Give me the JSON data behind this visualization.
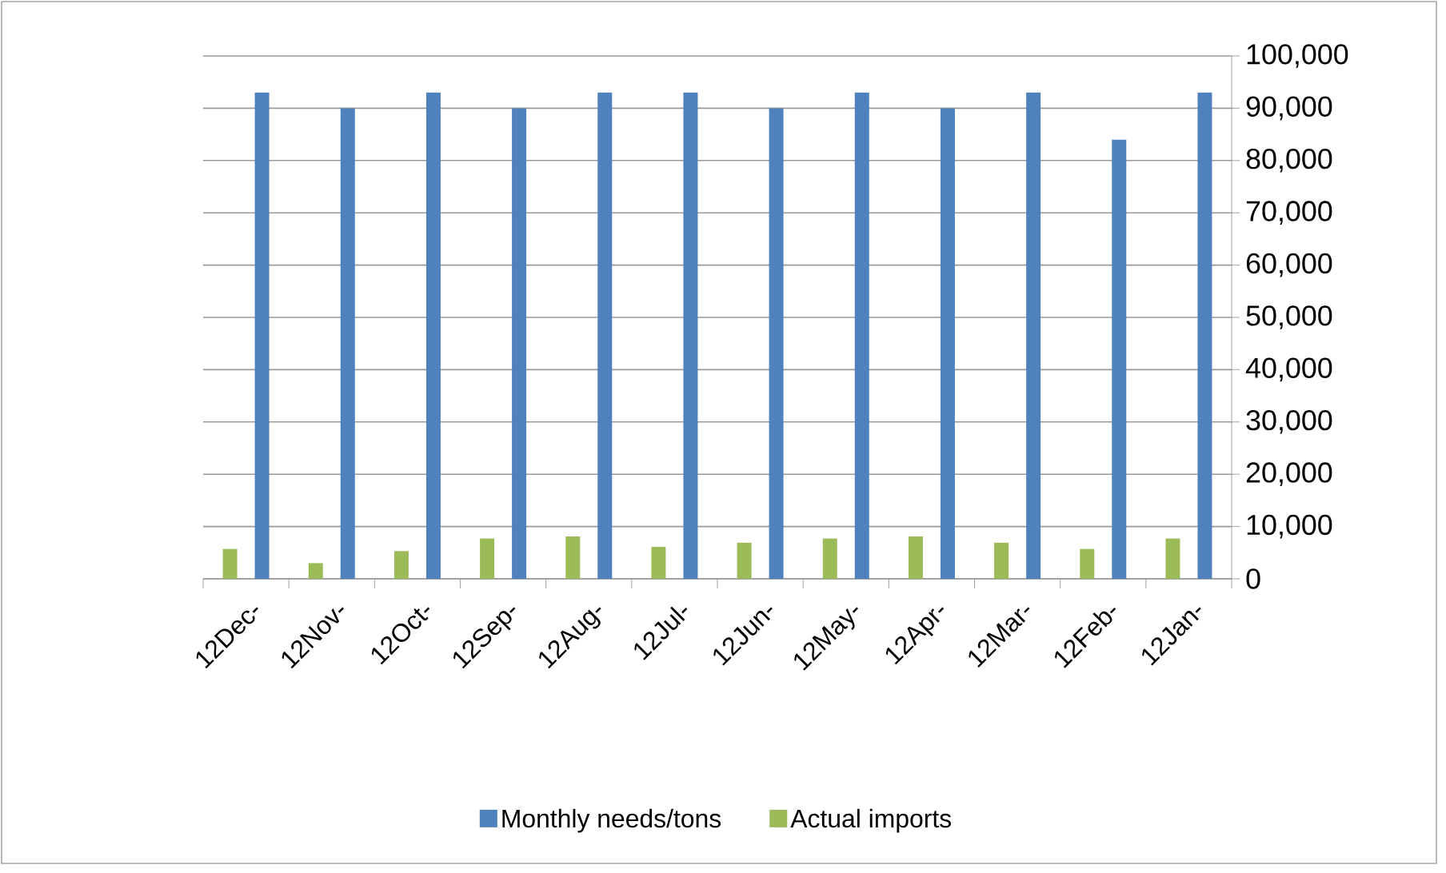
{
  "chart_data": {
    "type": "bar",
    "categories": [
      "12Dec-",
      "12Nov-",
      "12Oct-",
      "12Sep-",
      "12Aug-",
      "12Jul-",
      "12Jun-",
      "12May-",
      "12Apr-",
      "12Mar-",
      "12Feb-",
      "12Jan-"
    ],
    "series": [
      {
        "name": "Monthly needs/tons",
        "color": "#4f81bd",
        "values": [
          93000,
          90000,
          93000,
          90000,
          93000,
          93000,
          90000,
          93000,
          90000,
          93000,
          84000,
          93000
        ]
      },
      {
        "name": "Actual imports",
        "color": "#9bbb59",
        "values": [
          5700,
          3000,
          5300,
          7700,
          8100,
          6100,
          6900,
          7700,
          8100,
          6900,
          5700,
          7700
        ]
      }
    ],
    "ylim": [
      0,
      100000
    ],
    "yticks": [
      {
        "value": 0,
        "label": "0"
      },
      {
        "value": 10000,
        "label": "10,000"
      },
      {
        "value": 20000,
        "label": "20,000"
      },
      {
        "value": 30000,
        "label": "30,000"
      },
      {
        "value": 40000,
        "label": "40,000"
      },
      {
        "value": 50000,
        "label": "50,000"
      },
      {
        "value": 60000,
        "label": "60,000"
      },
      {
        "value": 70000,
        "label": "70,000"
      },
      {
        "value": 80000,
        "label": "80,000"
      },
      {
        "value": 90000,
        "label": "90,000"
      },
      {
        "value": 100000,
        "label": "100,000"
      }
    ],
    "grid": "y",
    "legend": "bottom"
  }
}
